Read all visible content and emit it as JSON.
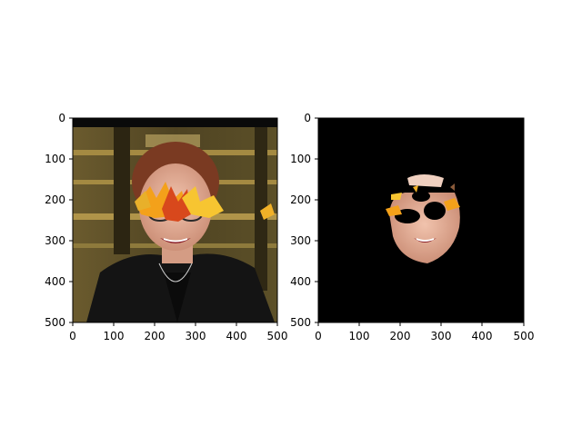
{
  "panels": [
    {
      "id": "left",
      "description_shown": "photo-with-leaf-overlay",
      "x_ticks": [
        "0",
        "100",
        "200",
        "300",
        "400",
        "500"
      ],
      "y_ticks": [
        "0",
        "100",
        "200",
        "300",
        "400",
        "500"
      ]
    },
    {
      "id": "right",
      "description_shown": "masked-face-on-black",
      "x_ticks": [
        "0",
        "100",
        "200",
        "300",
        "400",
        "500"
      ],
      "y_ticks": [
        "0",
        "100",
        "200",
        "300",
        "400",
        "500"
      ]
    }
  ],
  "colors": {
    "background": "#ffffff",
    "axis": "#000000",
    "mask_bg": "#000000",
    "leaf_orange": "#f4a11a",
    "leaf_red": "#d8481c",
    "leaf_yellow": "#f7c531",
    "skin": "#e9b6a0",
    "jacket": "#141414",
    "hair": "#7a3a22"
  }
}
